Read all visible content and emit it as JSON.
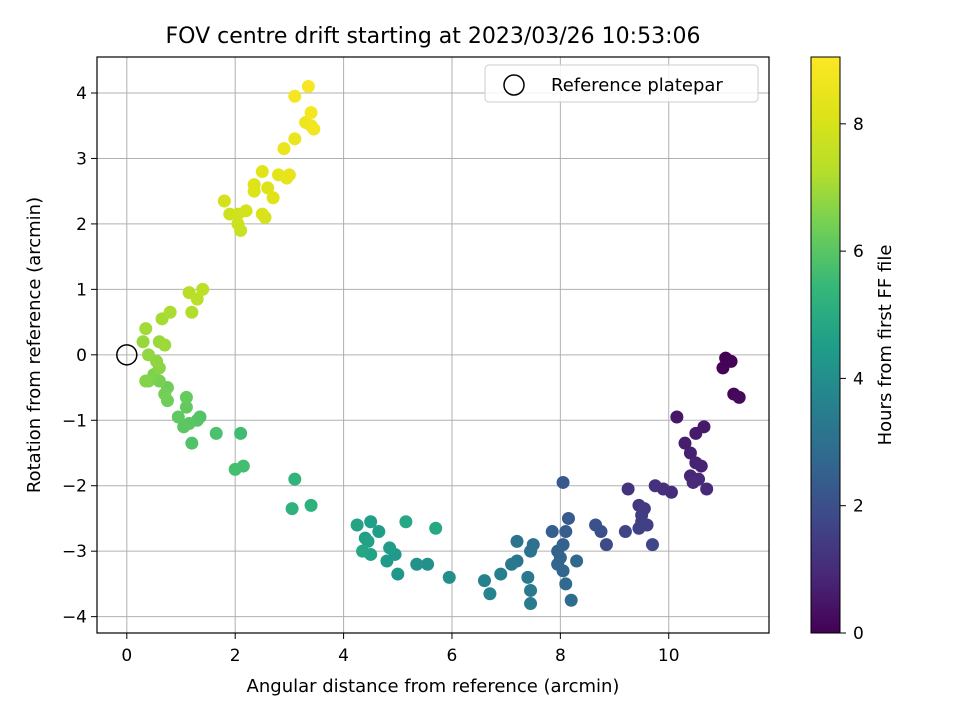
{
  "chart_data": {
    "type": "scatter",
    "title": "FOV centre drift starting at 2023/03/26 10:53:06",
    "xlabel": "Angular distance from reference (arcmin)",
    "ylabel": "Rotation from reference (arcmin)",
    "xlim": [
      -0.55,
      11.85
    ],
    "ylim": [
      -4.25,
      4.55
    ],
    "xticks": [
      0,
      2,
      4,
      6,
      8,
      10
    ],
    "yticks": [
      -4,
      -3,
      -2,
      -1,
      0,
      1,
      2,
      3,
      4
    ],
    "xtick_labels": [
      "0",
      "2",
      "4",
      "6",
      "8",
      "10"
    ],
    "ytick_labels": [
      "−4",
      "−3",
      "−2",
      "−1",
      "0",
      "1",
      "2",
      "3",
      "4"
    ],
    "grid": true,
    "legend": {
      "position": "top-right",
      "label": "Reference platepar",
      "marker": "open-circle"
    },
    "reference_point": {
      "x": 0,
      "y": 0
    },
    "colorbar": {
      "label": "Hours from first FF file",
      "colormap": "viridis",
      "range": [
        0,
        9.05
      ],
      "ticks": [
        0,
        2,
        4,
        6,
        8
      ],
      "tick_labels": [
        "0",
        "2",
        "4",
        "6",
        "8"
      ]
    },
    "points": [
      [
        11.05,
        -0.05,
        0.0
      ],
      [
        11.15,
        -0.1,
        0.05
      ],
      [
        11.0,
        -0.2,
        0.1
      ],
      [
        11.2,
        -0.6,
        0.15
      ],
      [
        11.3,
        -0.65,
        0.2
      ],
      [
        10.15,
        -0.95,
        0.5
      ],
      [
        10.65,
        -1.1,
        0.55
      ],
      [
        10.5,
        -1.2,
        0.6
      ],
      [
        10.3,
        -1.35,
        0.65
      ],
      [
        10.4,
        -1.5,
        0.7
      ],
      [
        10.5,
        -1.65,
        0.75
      ],
      [
        10.6,
        -1.7,
        0.8
      ],
      [
        10.4,
        -1.85,
        0.85
      ],
      [
        10.55,
        -1.9,
        0.9
      ],
      [
        10.45,
        -1.95,
        0.95
      ],
      [
        10.7,
        -2.05,
        1.0
      ],
      [
        10.05,
        -2.1,
        1.05
      ],
      [
        9.9,
        -2.05,
        1.1
      ],
      [
        9.75,
        -2.0,
        1.15
      ],
      [
        9.25,
        -2.05,
        1.2
      ],
      [
        9.45,
        -2.3,
        1.35
      ],
      [
        9.55,
        -2.35,
        1.4
      ],
      [
        9.5,
        -2.45,
        1.45
      ],
      [
        9.5,
        -2.55,
        1.5
      ],
      [
        9.6,
        -2.6,
        1.55
      ],
      [
        9.45,
        -2.65,
        1.6
      ],
      [
        9.2,
        -2.7,
        1.7
      ],
      [
        9.7,
        -2.9,
        1.75
      ],
      [
        8.85,
        -2.9,
        1.9
      ],
      [
        8.75,
        -2.7,
        2.0
      ],
      [
        8.65,
        -2.6,
        2.05
      ],
      [
        8.05,
        -1.95,
        2.3
      ],
      [
        8.15,
        -2.5,
        2.35
      ],
      [
        8.1,
        -2.7,
        2.4
      ],
      [
        7.85,
        -2.7,
        2.45
      ],
      [
        8.05,
        -2.9,
        2.5
      ],
      [
        7.95,
        -3.0,
        2.55
      ],
      [
        8.0,
        -3.1,
        2.6
      ],
      [
        7.95,
        -3.2,
        2.65
      ],
      [
        8.05,
        -3.3,
        2.7
      ],
      [
        8.3,
        -3.15,
        2.75
      ],
      [
        8.1,
        -3.5,
        2.8
      ],
      [
        8.2,
        -3.75,
        2.85
      ],
      [
        7.5,
        -2.9,
        3.0
      ],
      [
        7.45,
        -3.0,
        3.05
      ],
      [
        7.2,
        -2.85,
        3.1
      ],
      [
        7.2,
        -3.15,
        3.2
      ],
      [
        7.1,
        -3.2,
        3.25
      ],
      [
        7.4,
        -3.4,
        3.3
      ],
      [
        7.45,
        -3.6,
        3.35
      ],
      [
        7.45,
        -3.8,
        3.4
      ],
      [
        6.9,
        -3.35,
        3.5
      ],
      [
        6.6,
        -3.45,
        3.6
      ],
      [
        6.7,
        -3.65,
        3.7
      ],
      [
        5.95,
        -3.4,
        4.0
      ],
      [
        5.55,
        -3.2,
        4.1
      ],
      [
        5.35,
        -3.2,
        4.15
      ],
      [
        5.0,
        -3.35,
        4.3
      ],
      [
        4.95,
        -3.05,
        4.35
      ],
      [
        4.8,
        -3.15,
        4.4
      ],
      [
        4.85,
        -2.95,
        4.45
      ],
      [
        4.65,
        -2.7,
        4.5
      ],
      [
        4.5,
        -2.55,
        4.55
      ],
      [
        4.4,
        -2.8,
        4.6
      ],
      [
        4.45,
        -2.85,
        4.65
      ],
      [
        4.5,
        -3.05,
        4.7
      ],
      [
        4.25,
        -2.6,
        4.75
      ],
      [
        4.35,
        -3.0,
        4.8
      ],
      [
        5.15,
        -2.55,
        4.85
      ],
      [
        5.7,
        -2.65,
        4.9
      ],
      [
        3.4,
        -2.3,
        5.2
      ],
      [
        3.05,
        -2.35,
        5.25
      ],
      [
        3.1,
        -1.9,
        5.3
      ],
      [
        2.1,
        -1.2,
        5.6
      ],
      [
        2.15,
        -1.7,
        5.65
      ],
      [
        2.0,
        -1.75,
        5.7
      ],
      [
        1.65,
        -1.2,
        5.8
      ],
      [
        1.2,
        -1.35,
        5.85
      ],
      [
        1.35,
        -0.95,
        5.9
      ],
      [
        1.3,
        -1.0,
        5.95
      ],
      [
        1.15,
        -1.05,
        6.0
      ],
      [
        1.05,
        -1.1,
        6.05
      ],
      [
        0.95,
        -0.95,
        6.1
      ],
      [
        1.1,
        -0.8,
        6.15
      ],
      [
        1.1,
        -0.65,
        6.2
      ],
      [
        0.75,
        -0.5,
        6.3
      ],
      [
        0.75,
        -0.7,
        6.35
      ],
      [
        0.7,
        -0.6,
        6.4
      ],
      [
        0.6,
        -0.4,
        6.45
      ],
      [
        0.5,
        -0.3,
        6.5
      ],
      [
        0.4,
        -0.4,
        6.55
      ],
      [
        0.35,
        -0.4,
        6.6
      ],
      [
        0.6,
        -0.2,
        6.7
      ],
      [
        0.55,
        -0.1,
        6.75
      ],
      [
        0.4,
        0.0,
        6.8
      ],
      [
        0.3,
        0.2,
        6.85
      ],
      [
        0.6,
        0.2,
        6.9
      ],
      [
        0.7,
        0.15,
        6.95
      ],
      [
        0.35,
        0.4,
        7.0
      ],
      [
        0.65,
        0.55,
        7.05
      ],
      [
        0.8,
        0.65,
        7.1
      ],
      [
        1.2,
        0.65,
        7.2
      ],
      [
        1.15,
        0.95,
        7.3
      ],
      [
        1.3,
        0.85,
        7.35
      ],
      [
        1.4,
        1.0,
        7.4
      ],
      [
        2.1,
        1.9,
        7.7
      ],
      [
        2.05,
        2.0,
        7.75
      ],
      [
        1.9,
        2.15,
        7.8
      ],
      [
        2.05,
        2.15,
        7.85
      ],
      [
        2.2,
        2.2,
        7.9
      ],
      [
        1.8,
        2.35,
        7.95
      ],
      [
        2.55,
        2.1,
        8.0
      ],
      [
        2.5,
        2.15,
        8.05
      ],
      [
        2.35,
        2.5,
        8.1
      ],
      [
        2.6,
        2.55,
        8.15
      ],
      [
        2.35,
        2.6,
        8.2
      ],
      [
        2.7,
        2.4,
        8.25
      ],
      [
        2.5,
        2.8,
        8.3
      ],
      [
        2.8,
        2.75,
        8.35
      ],
      [
        2.95,
        2.7,
        8.4
      ],
      [
        3.0,
        2.75,
        8.45
      ],
      [
        2.9,
        3.15,
        8.5
      ],
      [
        3.1,
        3.3,
        8.55
      ],
      [
        3.3,
        3.55,
        8.6
      ],
      [
        3.4,
        3.5,
        8.7
      ],
      [
        3.45,
        3.45,
        8.75
      ],
      [
        3.4,
        3.7,
        8.8
      ],
      [
        3.1,
        3.95,
        8.85
      ],
      [
        3.35,
        4.1,
        8.9
      ]
    ]
  }
}
